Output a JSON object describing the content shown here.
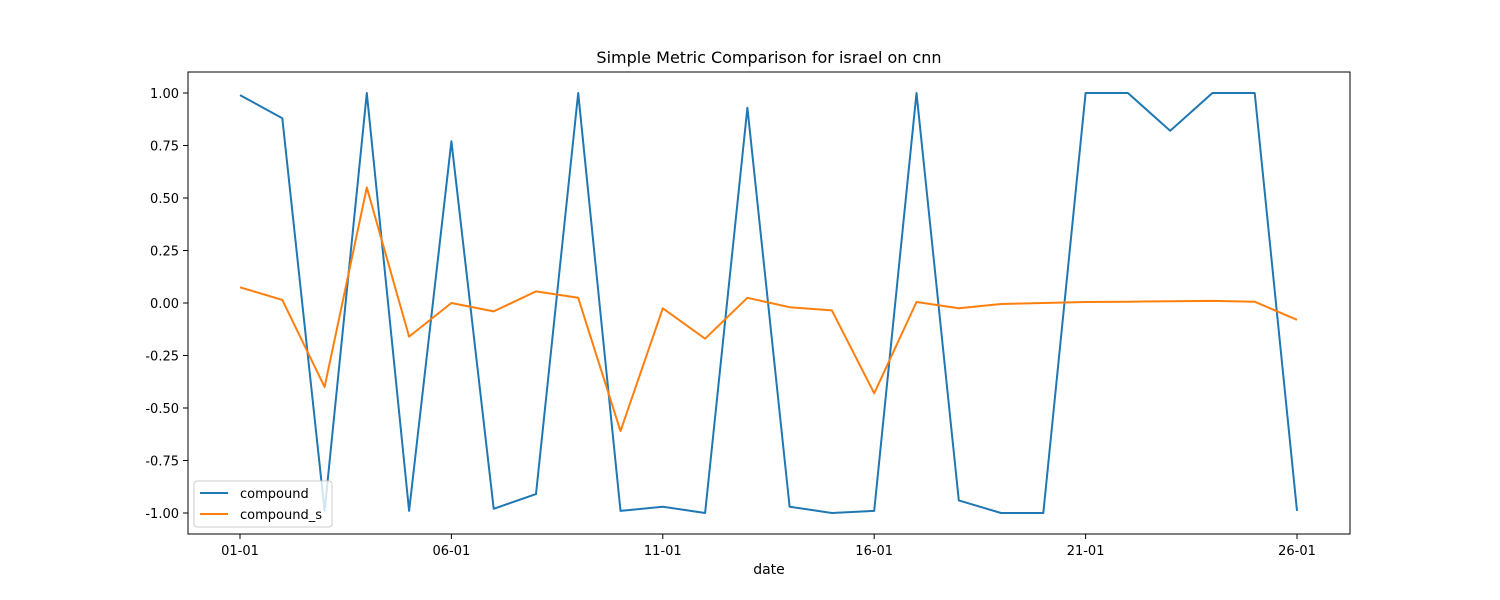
{
  "chart_data": {
    "type": "line",
    "title": "Simple Metric Comparison for israel on cnn",
    "xlabel": "date",
    "ylabel": "",
    "x": [
      "01-01",
      "02-01",
      "03-01",
      "04-01",
      "05-01",
      "06-01",
      "07-01",
      "08-01",
      "09-01",
      "10-01",
      "11-01",
      "12-01",
      "13-01",
      "14-01",
      "15-01",
      "16-01",
      "17-01",
      "18-01",
      "19-01",
      "20-01",
      "21-01",
      "22-01",
      "23-01",
      "24-01",
      "25-01",
      "26-01"
    ],
    "x_ticks": [
      "01-01",
      "06-01",
      "11-01",
      "16-01",
      "21-01",
      "26-01"
    ],
    "y_ticks": [
      "-1.00",
      "-0.75",
      "-0.50",
      "-0.25",
      "0.00",
      "0.25",
      "0.50",
      "0.75",
      "1.00"
    ],
    "ylim": [
      -1.1,
      1.1
    ],
    "legend_position": "lower-left",
    "grid": false,
    "series": [
      {
        "name": "compound",
        "color": "#1f77b4",
        "values": [
          0.99,
          0.88,
          -0.99,
          1.0,
          -0.99,
          0.77,
          -0.98,
          -0.91,
          1.0,
          -0.99,
          -0.97,
          -1.0,
          0.93,
          -0.97,
          -1.0,
          -0.99,
          1.0,
          -0.94,
          -1.0,
          -1.0,
          1.0,
          1.0,
          0.82,
          1.0,
          1.0,
          -0.99
        ]
      },
      {
        "name": "compound_s",
        "color": "#ff7f0e",
        "values": [
          0.075,
          0.015,
          -0.4,
          0.55,
          -0.16,
          0.0,
          -0.04,
          0.055,
          0.025,
          -0.61,
          -0.025,
          -0.17,
          0.025,
          -0.02,
          -0.035,
          -0.43,
          0.005,
          -0.025,
          -0.005,
          0.0,
          0.005,
          0.006,
          0.008,
          0.01,
          0.006,
          -0.08
        ]
      }
    ]
  }
}
